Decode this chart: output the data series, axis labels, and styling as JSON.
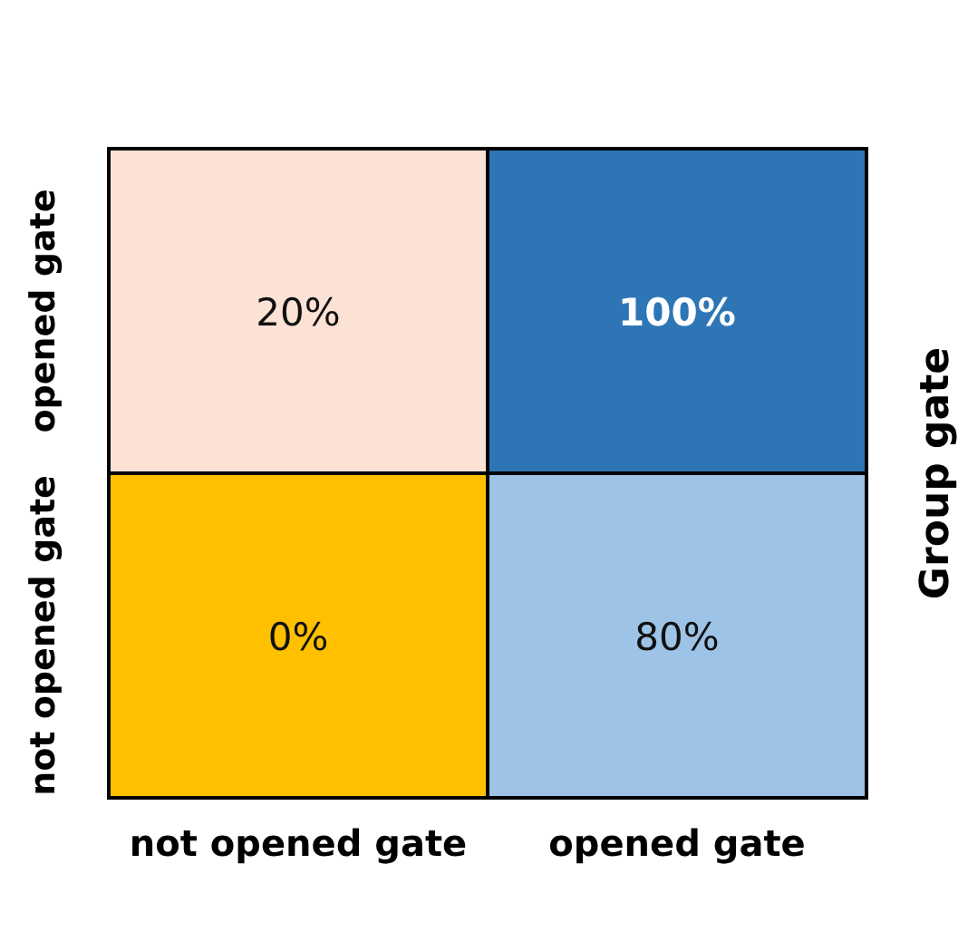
{
  "chart_data": {
    "type": "heatmap",
    "ylabel": "Group gate",
    "categories": [
      "not opened gate",
      "opened gate"
    ],
    "y_categories": [
      "opened gate",
      "not opened gate"
    ],
    "cells": [
      [
        20,
        100
      ],
      [
        0,
        80
      ]
    ],
    "cell_labels": [
      [
        "20%",
        "100%"
      ],
      [
        "0%",
        "80%"
      ]
    ],
    "colors": [
      [
        "#fbe2d5",
        "#2e75b6"
      ],
      [
        "#ffc000",
        "#9dc3e6"
      ]
    ]
  }
}
